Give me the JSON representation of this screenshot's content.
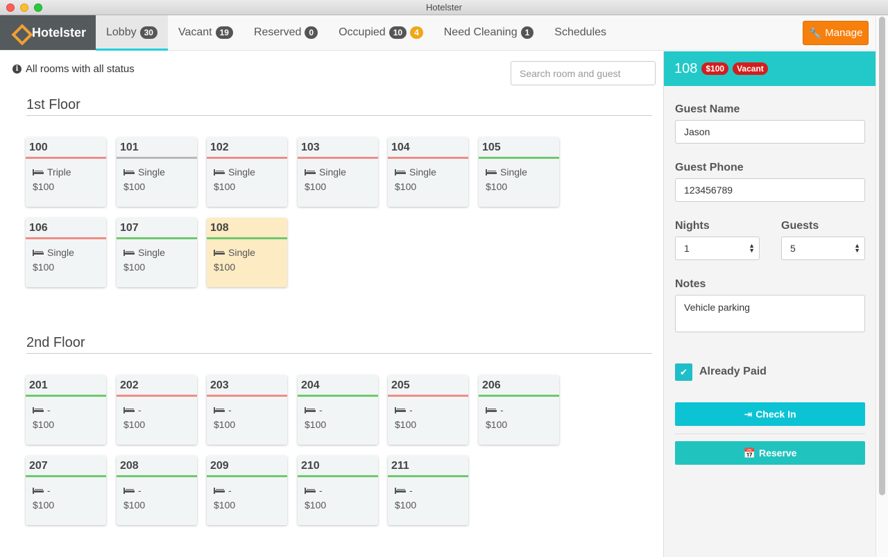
{
  "window": {
    "title": "Hotelster"
  },
  "brand": {
    "name": "Hotelster"
  },
  "tabs": [
    {
      "label": "Lobby",
      "count": "30"
    },
    {
      "label": "Vacant",
      "count": "19"
    },
    {
      "label": "Reserved",
      "count": "0"
    },
    {
      "label": "Occupied",
      "count": "10",
      "count2": "4"
    },
    {
      "label": "Need Cleaning",
      "count": "1"
    },
    {
      "label": "Schedules"
    }
  ],
  "manage": {
    "label": "Manage"
  },
  "filter": {
    "info": "All rooms with all status"
  },
  "search": {
    "placeholder": "Search room and guest"
  },
  "floors": [
    {
      "title": "1st Floor",
      "rooms": [
        {
          "number": "100",
          "type": "Triple",
          "price": "$100",
          "status": "red"
        },
        {
          "number": "101",
          "type": "Single",
          "price": "$100",
          "status": "gray"
        },
        {
          "number": "102",
          "type": "Single",
          "price": "$100",
          "status": "red"
        },
        {
          "number": "103",
          "type": "Single",
          "price": "$100",
          "status": "red"
        },
        {
          "number": "104",
          "type": "Single",
          "price": "$100",
          "status": "red"
        },
        {
          "number": "105",
          "type": "Single",
          "price": "$100",
          "status": "green"
        },
        {
          "number": "106",
          "type": "Single",
          "price": "$100",
          "status": "red"
        },
        {
          "number": "107",
          "type": "Single",
          "price": "$100",
          "status": "green"
        },
        {
          "number": "108",
          "type": "Single",
          "price": "$100",
          "status": "green",
          "selected": true
        }
      ]
    },
    {
      "title": "2nd Floor",
      "rooms": [
        {
          "number": "201",
          "type": "-",
          "price": "$100",
          "status": "green"
        },
        {
          "number": "202",
          "type": "-",
          "price": "$100",
          "status": "red"
        },
        {
          "number": "203",
          "type": "-",
          "price": "$100",
          "status": "red"
        },
        {
          "number": "204",
          "type": "-",
          "price": "$100",
          "status": "green"
        },
        {
          "number": "205",
          "type": "-",
          "price": "$100",
          "status": "red"
        },
        {
          "number": "206",
          "type": "-",
          "price": "$100",
          "status": "green"
        },
        {
          "number": "207",
          "type": "-",
          "price": "$100",
          "status": "green"
        },
        {
          "number": "208",
          "type": "-",
          "price": "$100",
          "status": "green"
        },
        {
          "number": "209",
          "type": "-",
          "price": "$100",
          "status": "green"
        },
        {
          "number": "210",
          "type": "-",
          "price": "$100",
          "status": "green"
        },
        {
          "number": "211",
          "type": "-",
          "price": "$100",
          "status": "green"
        }
      ]
    }
  ],
  "detail": {
    "room_number": "108",
    "price_badge": "$100",
    "status_badge": "Vacant",
    "guest_name_label": "Guest Name",
    "guest_name": "Jason",
    "guest_phone_label": "Guest Phone",
    "guest_phone": "123456789",
    "nights_label": "Nights",
    "nights": "1",
    "guests_label": "Guests",
    "guests": "5",
    "notes_label": "Notes",
    "notes": "Vehicle parking",
    "paid_label": "Already Paid",
    "paid": true,
    "checkin_label": "Check In",
    "reserve_label": "Reserve"
  },
  "colors": {
    "accent": "#22c9c8",
    "manage": "#f77f0c",
    "status_red": "#ef8c86",
    "status_green": "#6cc96c",
    "status_gray": "#b8b8b8",
    "selected_room": "#fdebc3"
  }
}
